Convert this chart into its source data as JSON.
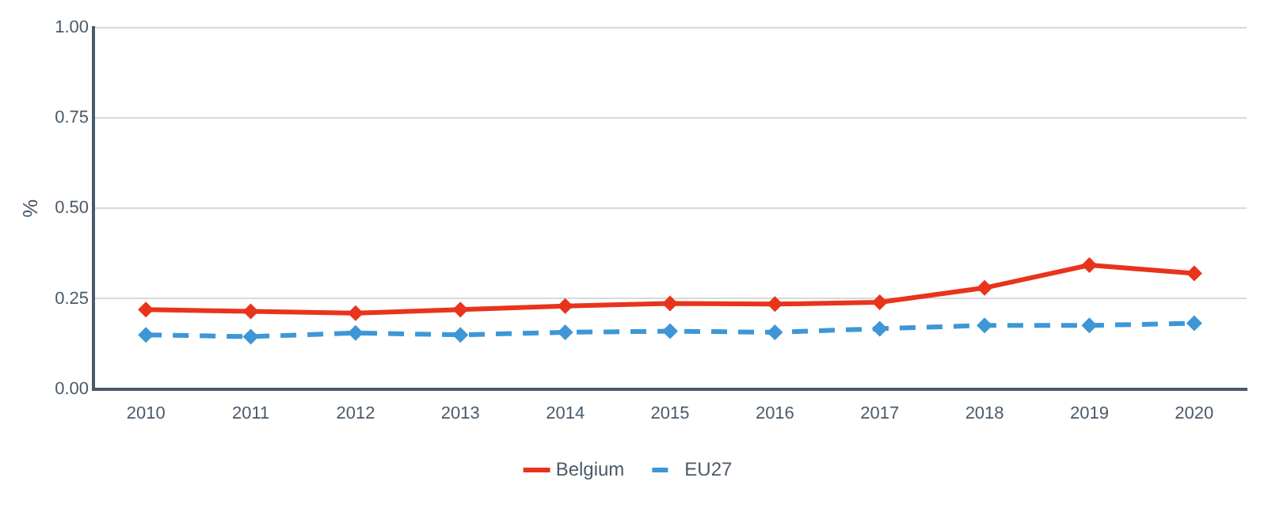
{
  "chart_data": {
    "type": "line",
    "ylabel": "%",
    "categories": [
      "2010",
      "2011",
      "2012",
      "2013",
      "2014",
      "2015",
      "2016",
      "2017",
      "2018",
      "2019",
      "2020"
    ],
    "series": [
      {
        "name": "Belgium",
        "color": "#e8341c",
        "line_style": "solid",
        "values": [
          0.22,
          0.215,
          0.21,
          0.22,
          0.23,
          0.237,
          0.235,
          0.24,
          0.28,
          0.343,
          0.32
        ]
      },
      {
        "name": "EU27",
        "color": "#3d97d6",
        "line_style": "dashed",
        "values": [
          0.15,
          0.145,
          0.155,
          0.15,
          0.157,
          0.16,
          0.157,
          0.167,
          0.176,
          0.176,
          0.182
        ]
      }
    ],
    "ylim": [
      0,
      1
    ],
    "yticks": [
      {
        "value": 0,
        "label": "0.00"
      },
      {
        "value": 0.25,
        "label": "0.25"
      },
      {
        "value": 0.5,
        "label": "0.50"
      },
      {
        "value": 0.75,
        "label": "0.75"
      },
      {
        "value": 1,
        "label": "1.00"
      }
    ],
    "grid": "y",
    "legend": "bottom",
    "marker": "diamond"
  }
}
